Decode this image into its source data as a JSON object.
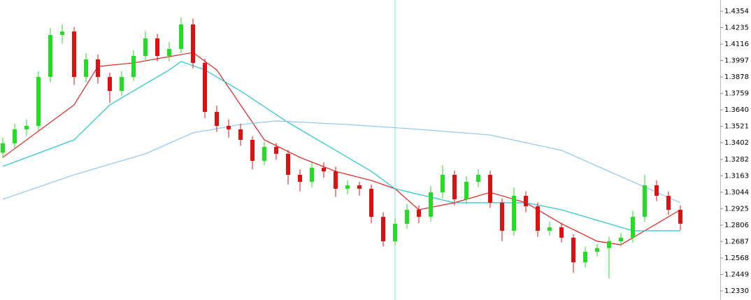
{
  "chart_data": {
    "type": "candlestick",
    "up_color": "#22dd22",
    "down_color": "#e01010",
    "open": [
      1.333,
      1.3398,
      1.3499,
      1.3524,
      1.3878,
      1.4182,
      1.4207,
      1.3878,
      1.4005,
      1.3878,
      1.3777,
      1.3878,
      1.403,
      1.4157,
      1.403,
      1.4081,
      1.4258,
      1.398,
      1.3625,
      1.3524,
      1.3499,
      1.3423,
      1.3271,
      1.3372,
      1.3322,
      1.317,
      1.3119,
      1.3221,
      1.3195,
      1.3069,
      1.3094,
      1.3069,
      1.2866,
      1.2689,
      1.2816,
      1.2917,
      1.2866,
      1.3043,
      1.317,
      1.2993,
      1.3119,
      1.317,
      1.2968,
      1.2765,
      1.3018,
      1.2942,
      1.2765,
      1.279,
      1.2715,
      1.2537,
      1.2613,
      1.264,
      1.2689,
      1.2715,
      1.2866,
      1.3094,
      1.3018,
      1.2917
    ],
    "high": [
      1.344,
      1.354,
      1.357,
      1.392,
      1.423,
      1.426,
      1.424,
      1.405,
      1.404,
      1.391,
      1.392,
      1.407,
      1.421,
      1.419,
      1.413,
      1.431,
      1.43,
      1.401,
      1.367,
      1.357,
      1.354,
      1.345,
      1.341,
      1.34,
      1.335,
      1.321,
      1.326,
      1.326,
      1.323,
      1.313,
      1.312,
      1.31,
      1.29,
      1.286,
      1.296,
      1.295,
      1.309,
      1.324,
      1.32,
      1.316,
      1.321,
      1.32,
      1.3,
      1.308,
      1.305,
      1.297,
      1.283,
      1.282,
      1.274,
      1.265,
      1.267,
      1.272,
      1.275,
      1.291,
      1.317,
      1.313,
      1.305,
      1.295
    ],
    "low": [
      1.329,
      1.336,
      1.345,
      1.349,
      1.384,
      1.412,
      1.382,
      1.384,
      1.383,
      1.369,
      1.374,
      1.385,
      1.399,
      1.399,
      1.399,
      1.405,
      1.394,
      1.358,
      1.348,
      1.344,
      1.338,
      1.321,
      1.324,
      1.328,
      1.31,
      1.305,
      1.308,
      1.315,
      1.301,
      1.303,
      1.302,
      1.282,
      1.265,
      1.266,
      1.278,
      1.282,
      1.283,
      1.3,
      1.295,
      1.296,
      1.308,
      1.293,
      1.269,
      1.273,
      1.29,
      1.272,
      1.273,
      1.268,
      1.246,
      1.25,
      1.258,
      1.242,
      1.265,
      1.268,
      1.283,
      1.298,
      1.288,
      1.277
    ],
    "close": [
      1.3398,
      1.3499,
      1.3524,
      1.3878,
      1.4182,
      1.4207,
      1.3878,
      1.4005,
      1.3878,
      1.3777,
      1.3878,
      1.403,
      1.4157,
      1.403,
      1.4081,
      1.4258,
      1.398,
      1.3625,
      1.3524,
      1.3499,
      1.3423,
      1.3271,
      1.3372,
      1.3322,
      1.317,
      1.3119,
      1.3221,
      1.3195,
      1.3069,
      1.3094,
      1.3069,
      1.2866,
      1.2689,
      1.2816,
      1.2917,
      1.2866,
      1.3043,
      1.317,
      1.2993,
      1.3119,
      1.317,
      1.2968,
      1.2765,
      1.3018,
      1.2942,
      1.2765,
      1.279,
      1.2715,
      1.2537,
      1.2613,
      1.264,
      1.2689,
      1.2715,
      1.2866,
      1.3094,
      1.3018,
      1.2917,
      1.2816
    ],
    "series": [
      {
        "color": "#e02020",
        "x": [
          0,
          6,
          8,
          11,
          16,
          18,
          20,
          22,
          25,
          28,
          31,
          33,
          35,
          38,
          41,
          44,
          47,
          50,
          52,
          54,
          57
        ],
        "values": [
          1.3296,
          1.3676,
          1.3954,
          1.398,
          1.4055,
          1.3929,
          1.3676,
          1.3423,
          1.3296,
          1.3195,
          1.3129,
          1.3069,
          1.2917,
          1.2968,
          1.3043,
          1.2968,
          1.2816,
          1.2689,
          1.2664,
          1.2765,
          1.2917
        ]
      },
      {
        "color": "#20c8c8",
        "x": [
          0,
          6,
          9,
          12,
          14,
          15,
          17,
          20,
          24,
          28,
          31,
          33,
          38,
          44,
          47,
          50,
          53,
          57
        ],
        "values": [
          1.3231,
          1.3423,
          1.3676,
          1.3828,
          1.3929,
          1.399,
          1.3929,
          1.3777,
          1.3549,
          1.3347,
          1.3195,
          1.3069,
          1.2968,
          1.2968,
          1.2917,
          1.2841,
          1.2765,
          1.2765
        ]
      },
      {
        "color": "#8ec5ee",
        "x": [
          0,
          6,
          12,
          16,
          20,
          23,
          29,
          35,
          41,
          47,
          51,
          57
        ],
        "values": [
          1.2993,
          1.317,
          1.3322,
          1.3474,
          1.3534,
          1.356,
          1.3534,
          1.3499,
          1.3458,
          1.3347,
          1.3195,
          1.2968
        ]
      }
    ],
    "ylim": [
      1.2264,
      1.4435
    ],
    "yticks": [
      1.4354,
      1.4235,
      1.4116,
      1.3997,
      1.3878,
      1.3759,
      {
        "value": 1.364,
        "label": "1.3640"
      },
      1.3521,
      1.3402,
      1.3282,
      1.3163,
      1.3044,
      1.2925,
      1.2806,
      1.2687,
      1.2568,
      1.2449,
      {
        "value": 1.233,
        "label": "1.2330"
      }
    ],
    "grid": false
  }
}
